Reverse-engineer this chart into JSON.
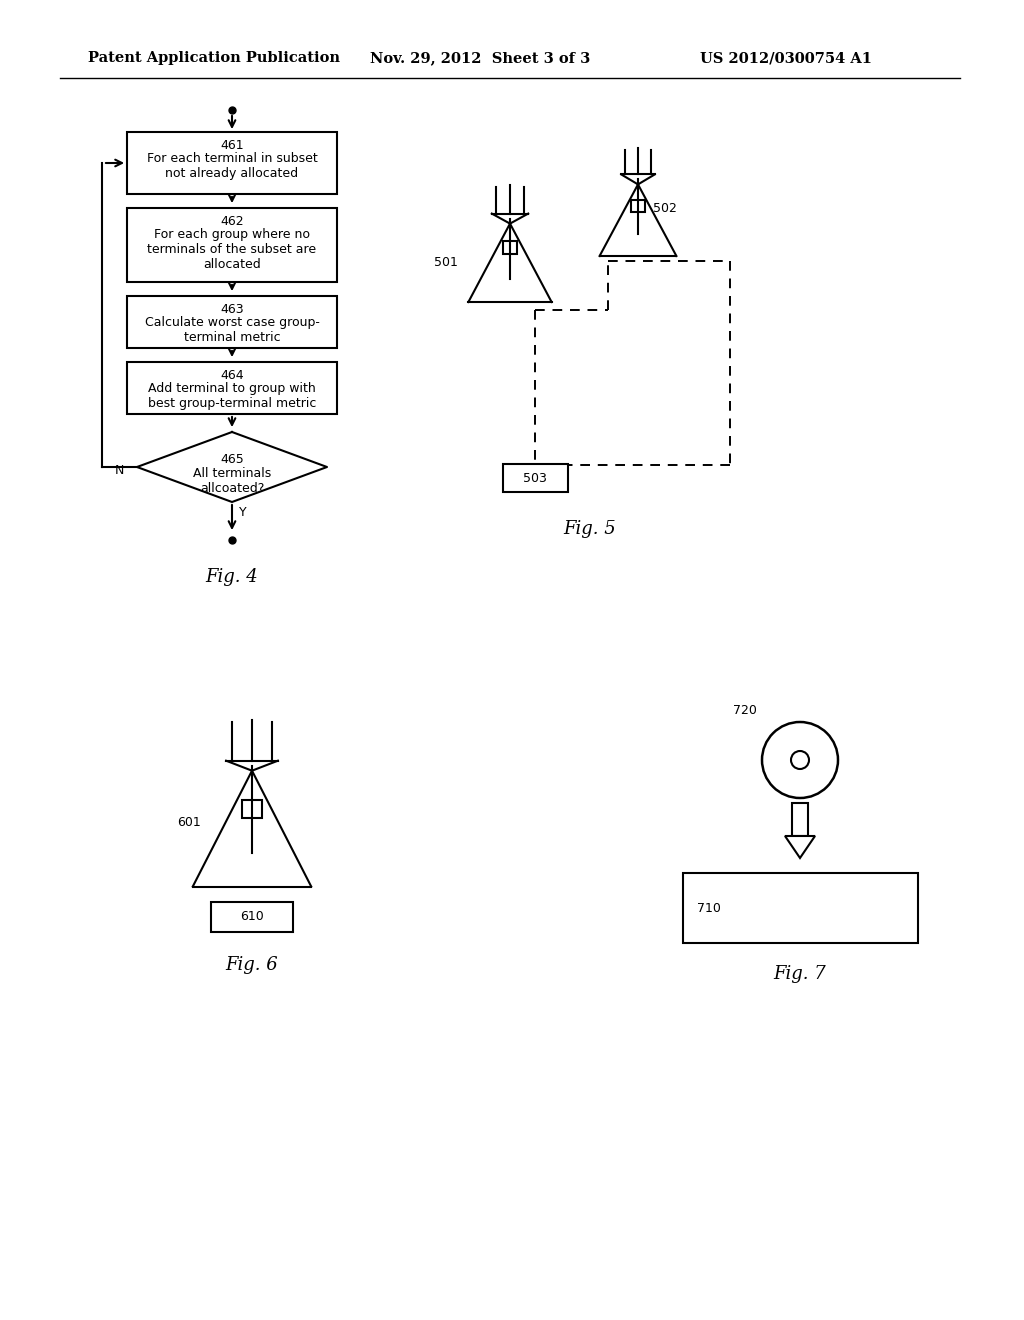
{
  "bg_color": "#ffffff",
  "header_left": "Patent Application Publication",
  "header_mid": "Nov. 29, 2012  Sheet 3 of 3",
  "header_right": "US 2012/0300754 A1",
  "fig4_label": "Fig. 4",
  "fig5_label": "Fig. 5",
  "fig6_label": "Fig. 6",
  "fig7_label": "Fig. 7",
  "box461_line1": "461",
  "box461_line2": "For each terminal in subset",
  "box461_line3": "not already allocated",
  "box462_line1": "462",
  "box462_line2": "For each group where no",
  "box462_line3": "terminals of the subset are",
  "box462_line4": "allocated",
  "box463_line1": "463",
  "box463_line2": "Calculate worst case group-",
  "box463_line3": "terminal metric",
  "box464_line1": "464",
  "box464_line2": "Add terminal to group with",
  "box464_line3": "best group-terminal metric",
  "box465_line1": "465",
  "box465_line2": "All terminals",
  "box465_line3": "allcoated?",
  "label_N": "N",
  "label_Y": "Y"
}
